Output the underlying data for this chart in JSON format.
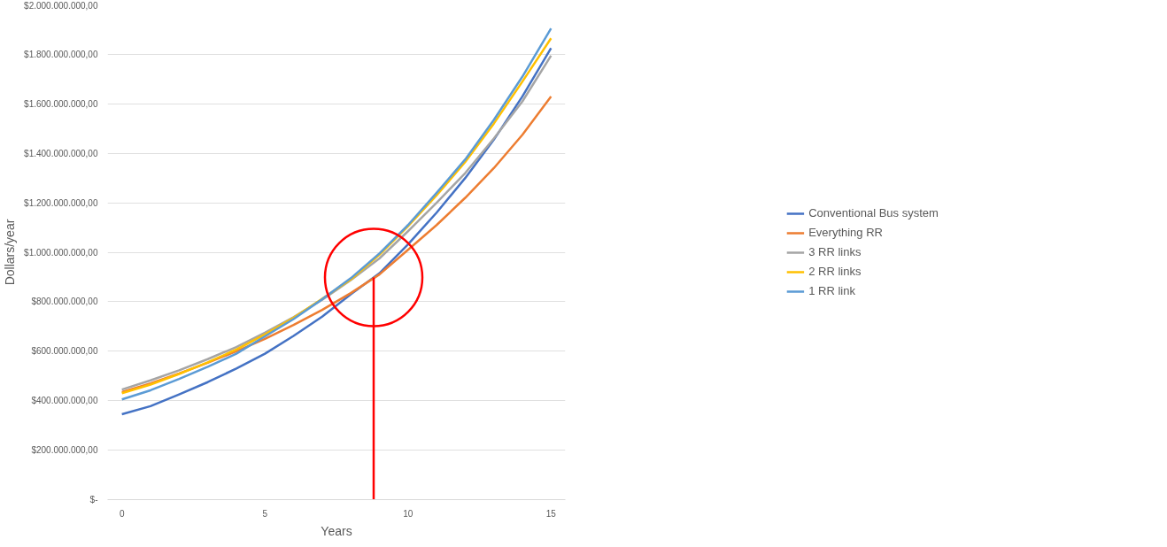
{
  "chart_data": {
    "type": "line",
    "xlabel": "Years",
    "ylabel": "Dollars/year",
    "x": [
      0,
      1,
      2,
      3,
      4,
      5,
      6,
      7,
      8,
      9,
      10,
      11,
      12,
      13,
      14,
      15
    ],
    "series": [
      {
        "name": "Conventional Bus system",
        "color": "#4472c4",
        "values": [
          345000000,
          378000000,
          425000000,
          475000000,
          530000000,
          590000000,
          662000000,
          740000000,
          830000000,
          915000000,
          1032000000,
          1160000000,
          1300000000,
          1455000000,
          1630000000,
          1825000000
        ]
      },
      {
        "name": "Everything RR",
        "color": "#ed7d31",
        "values": [
          435000000,
          470000000,
          510000000,
          553000000,
          600000000,
          650000000,
          706000000,
          767000000,
          835000000,
          910000000,
          1010000000,
          1110000000,
          1220000000,
          1340000000,
          1475000000,
          1630000000
        ]
      },
      {
        "name": "3 RR links",
        "color": "#a5a5a5",
        "values": [
          445000000,
          482000000,
          523000000,
          568000000,
          617000000,
          675000000,
          738000000,
          808000000,
          887000000,
          975000000,
          1085000000,
          1200000000,
          1320000000,
          1460000000,
          1610000000,
          1795000000
        ]
      },
      {
        "name": "2 RR links",
        "color": "#ffc000",
        "values": [
          430000000,
          465000000,
          508000000,
          555000000,
          607000000,
          668000000,
          735000000,
          812000000,
          890000000,
          990000000,
          1105000000,
          1230000000,
          1365000000,
          1520000000,
          1690000000,
          1865000000
        ]
      },
      {
        "name": "1 RR link",
        "color": "#5b9bd5",
        "values": [
          405000000,
          442000000,
          488000000,
          537000000,
          590000000,
          660000000,
          730000000,
          810000000,
          895000000,
          995000000,
          1110000000,
          1240000000,
          1375000000,
          1535000000,
          1710000000,
          1905000000
        ]
      }
    ],
    "xlim": [
      -0.5,
      15.5
    ],
    "xticks": [
      0,
      5,
      10,
      15
    ],
    "ylim": [
      0,
      2000000000
    ],
    "yticks": [
      {
        "value": 0,
        "label": "$-"
      },
      {
        "value": 200000000,
        "label": "$200.000.000,00"
      },
      {
        "value": 400000000,
        "label": "$400.000.000,00"
      },
      {
        "value": 600000000,
        "label": "$600.000.000,00"
      },
      {
        "value": 800000000,
        "label": "$800.000.000,00"
      },
      {
        "value": 1000000000,
        "label": "$1.000.000.000,00"
      },
      {
        "value": 1200000000,
        "label": "$1.200.000.000,00"
      },
      {
        "value": 1400000000,
        "label": "$1.400.000.000,00"
      },
      {
        "value": 1600000000,
        "label": "$1.600.000.000,00"
      },
      {
        "value": 1800000000,
        "label": "$1.800.000.000,00"
      },
      {
        "value": 2000000000,
        "label": "$2.000.000.000,00"
      }
    ],
    "ref_lines": [
      {
        "axis": "x",
        "value": 8.8,
        "color": "#ff0000"
      }
    ],
    "grid": "y",
    "legend": "right",
    "marker": "none",
    "line_style": "solid"
  }
}
